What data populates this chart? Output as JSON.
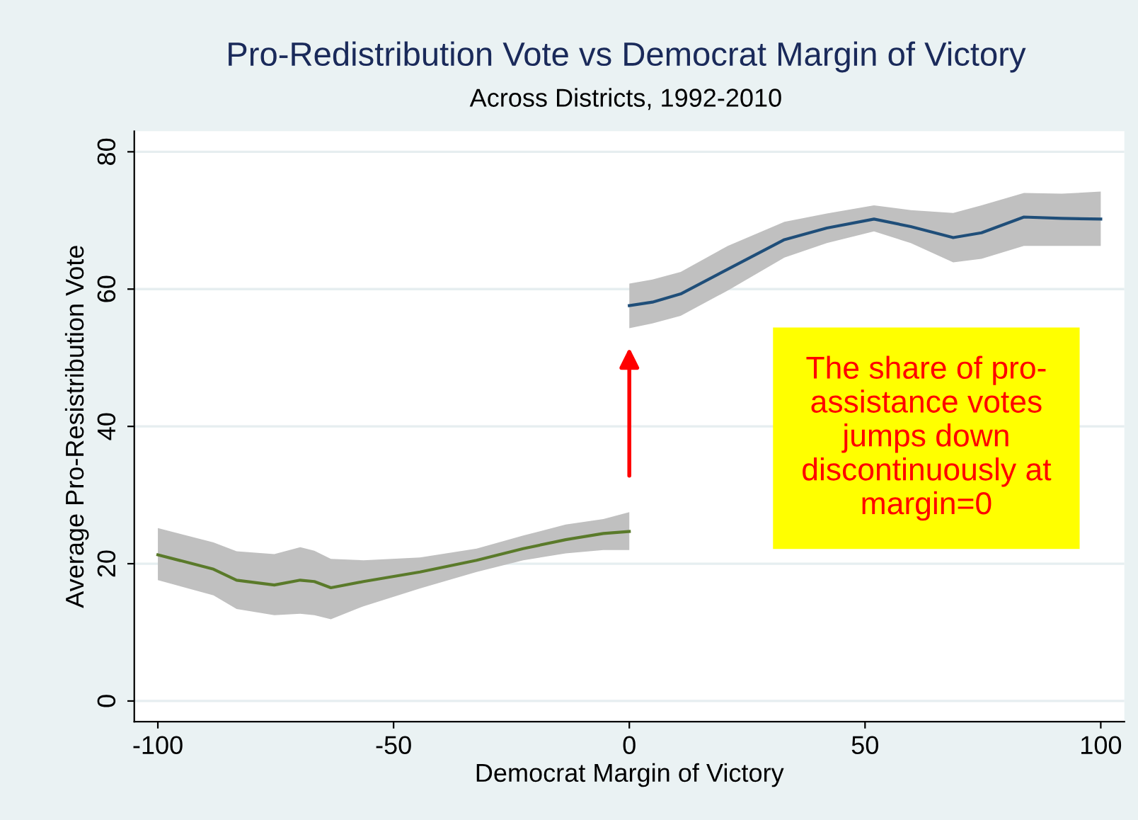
{
  "chart_data": {
    "type": "line",
    "title": "Pro-Redistribution Vote vs Democrat Margin of Victory",
    "subtitle": "Across Districts, 1992-2010",
    "xlabel": "Democrat Margin of Victory",
    "ylabel": "Average Pro-Resistribution Vote",
    "series": [
      {
        "color": "#5a7a2a",
        "x": [
          -100,
          -88.2,
          -83.3,
          -75.3,
          -69.8,
          -66.8,
          -63.3,
          -56.4,
          -44.4,
          -32.4,
          -22.5,
          -13.5,
          -5.5,
          0
        ],
        "values": [
          21.3,
          19.2,
          17.6,
          16.9,
          17.6,
          17.4,
          16.5,
          17.4,
          18.8,
          20.5,
          22.2,
          23.5,
          24.4,
          24.7
        ],
        "lower": [
          17.6,
          15.4,
          13.4,
          12.5,
          12.7,
          12.5,
          11.9,
          13.8,
          16.4,
          18.8,
          20.5,
          21.5,
          22.0,
          22.0
        ],
        "upper": [
          25.2,
          23.1,
          21.8,
          21.4,
          22.4,
          21.9,
          20.7,
          20.5,
          20.9,
          22.2,
          24.1,
          25.7,
          26.5,
          27.5
        ]
      },
      {
        "color": "#1f4e79",
        "x": [
          0,
          4.9,
          10.9,
          20.9,
          32.9,
          41.9,
          51.9,
          59.7,
          68.7,
          74.7,
          83.7,
          91.7,
          100
        ],
        "values": [
          57.6,
          58.1,
          59.3,
          62.9,
          67.2,
          68.9,
          70.2,
          69.1,
          67.5,
          68.2,
          70.5,
          70.3,
          70.2
        ],
        "lower": [
          54.3,
          55.0,
          56.1,
          59.8,
          64.6,
          66.7,
          68.4,
          66.7,
          63.9,
          64.4,
          66.3,
          66.3,
          66.3
        ],
        "upper": [
          60.8,
          61.4,
          62.5,
          66.3,
          69.8,
          71.0,
          72.2,
          71.5,
          71.1,
          72.2,
          74.0,
          73.9,
          74.2
        ]
      }
    ],
    "xlim": [
      -105,
      105
    ],
    "ylim": [
      -3,
      83
    ],
    "xticks": [
      -100,
      -50,
      0,
      50,
      100
    ],
    "yticks": [
      0,
      20,
      40,
      60,
      80
    ],
    "grid": "y",
    "legend": false,
    "annotations": [
      "The share of pro-\nassistance votes\njumps down\ndiscontinuously at\nmargin=0"
    ]
  }
}
